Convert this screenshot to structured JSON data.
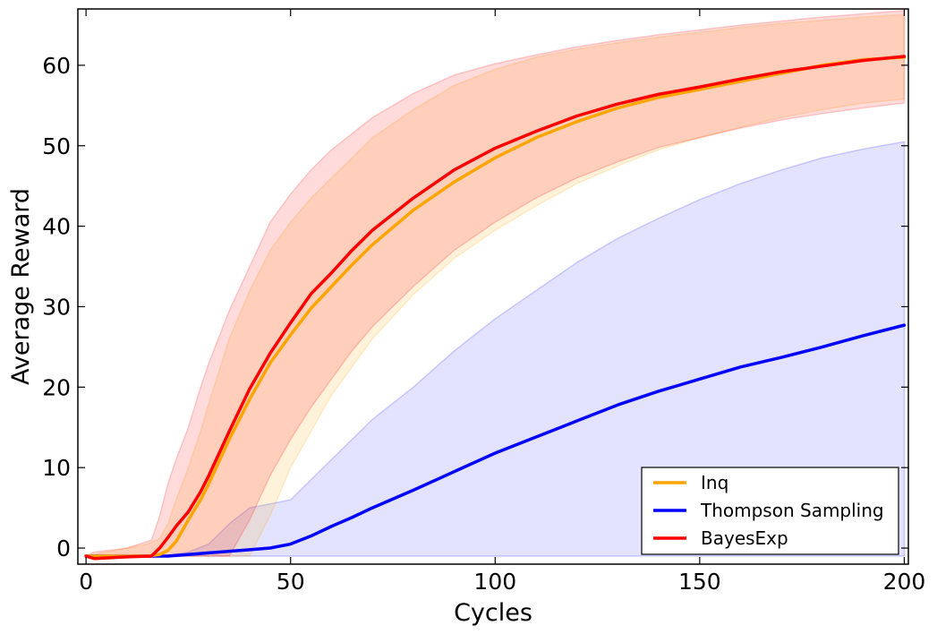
{
  "chart_data": {
    "type": "line",
    "xlabel": "Cycles",
    "ylabel": "Average Reward",
    "xlim": [
      -2,
      201
    ],
    "ylim": [
      -2,
      67
    ],
    "xticks": [
      0,
      50,
      100,
      150,
      200
    ],
    "yticks": [
      0,
      10,
      20,
      30,
      40,
      50,
      60
    ],
    "xtick_labels": [
      "0",
      "50",
      "100",
      "150",
      "200"
    ],
    "ytick_labels": [
      "0",
      "10",
      "20",
      "30",
      "40",
      "50",
      "60"
    ],
    "legend_position": "lower-right",
    "grid": false,
    "series": [
      {
        "name": "Inq",
        "color": "#FFA500",
        "x": [
          0,
          15,
          18,
          20,
          22,
          25,
          28,
          30,
          35,
          40,
          45,
          50,
          55,
          60,
          65,
          70,
          80,
          90,
          100,
          110,
          120,
          130,
          140,
          150,
          160,
          170,
          180,
          190,
          200
        ],
        "y": [
          -1,
          -1,
          -0.8,
          -0.3,
          0.8,
          3.5,
          6,
          8,
          13.5,
          18.5,
          23,
          26.5,
          29.8,
          32.5,
          35.2,
          37.7,
          42,
          45.5,
          48.5,
          51,
          53,
          54.7,
          56,
          57,
          58,
          59,
          60,
          60.7,
          61
        ],
        "lower": [
          -1,
          -1,
          -1,
          -1,
          -1,
          -1,
          -1,
          -1,
          -1,
          -1,
          4,
          10,
          14.5,
          19,
          22.5,
          26,
          31.5,
          36,
          39.5,
          42.5,
          45.3,
          47.5,
          49.5,
          51,
          52.3,
          53.5,
          54.5,
          55.3,
          55.8
        ],
        "upper": [
          -1,
          0.5,
          1.2,
          3,
          6,
          10,
          14.5,
          18,
          26,
          32,
          37,
          40.5,
          43.5,
          46,
          48.5,
          51,
          54.5,
          57.5,
          59.5,
          61,
          62,
          62.8,
          63.5,
          64.1,
          64.7,
          65.2,
          65.6,
          66,
          66.3
        ]
      },
      {
        "name": "Thompson Sampling",
        "color": "#0000FF",
        "x": [
          0,
          10,
          20,
          25,
          30,
          35,
          40,
          45,
          50,
          55,
          60,
          65,
          70,
          80,
          90,
          100,
          110,
          120,
          130,
          140,
          150,
          160,
          170,
          180,
          190,
          200
        ],
        "y": [
          -1,
          -1,
          -1,
          -0.8,
          -0.6,
          -0.4,
          -0.2,
          0,
          0.5,
          1.5,
          2.7,
          3.8,
          5,
          7.2,
          9.5,
          11.8,
          13.8,
          15.8,
          17.8,
          19.5,
          21,
          22.5,
          23.7,
          25,
          26.4,
          27.7
        ],
        "lower": [
          -1,
          -1,
          -1,
          -1,
          -1,
          -1,
          -1,
          -1,
          -1,
          -1,
          -1,
          -1,
          -1,
          -1,
          -1,
          -1,
          -1,
          -1,
          -1,
          -1,
          -1,
          -1,
          -1,
          -1,
          -1,
          -1
        ],
        "upper": [
          -1,
          -1,
          -0.9,
          -0.5,
          0.5,
          3,
          5,
          5.5,
          6,
          8.5,
          11,
          13.5,
          16,
          20,
          24.5,
          28.5,
          32,
          35.5,
          38.5,
          41,
          43.3,
          45.3,
          47,
          48.5,
          49.6,
          50.5
        ]
      },
      {
        "name": "BayesExp",
        "color": "#FF0000",
        "x": [
          0,
          2,
          10,
          16,
          18,
          20,
          22,
          25,
          28,
          30,
          35,
          40,
          45,
          50,
          55,
          60,
          65,
          70,
          80,
          90,
          100,
          110,
          120,
          130,
          140,
          150,
          160,
          170,
          180,
          190,
          200
        ],
        "y": [
          -1,
          -1.3,
          -1.1,
          -1,
          0,
          1.3,
          2.7,
          4.5,
          7,
          9,
          14.5,
          19.8,
          24.2,
          28,
          31.6,
          34.2,
          37,
          39.5,
          43.5,
          47,
          49.7,
          51.8,
          53.7,
          55.2,
          56.4,
          57.3,
          58.3,
          59.2,
          59.9,
          60.6,
          61.1
        ],
        "lower": [
          -1,
          -1,
          -1,
          -1,
          -1,
          -1,
          -1,
          -1,
          -1,
          -1,
          -1,
          3.5,
          9,
          13.5,
          17.5,
          21,
          24.5,
          27.5,
          32.5,
          37,
          40.5,
          43.5,
          46,
          48,
          49.8,
          51,
          52.2,
          53.2,
          54,
          54.7,
          55.3
        ],
        "upper": [
          -1,
          -0.5,
          0,
          1,
          4,
          8,
          11,
          15,
          20,
          23,
          29.5,
          35,
          40.5,
          44,
          47,
          49.5,
          51.5,
          53.5,
          56.5,
          58.8,
          60.2,
          61.3,
          62.3,
          63.1,
          63.8,
          64.4,
          65,
          65.5,
          66,
          66.4,
          66.8
        ]
      }
    ]
  }
}
